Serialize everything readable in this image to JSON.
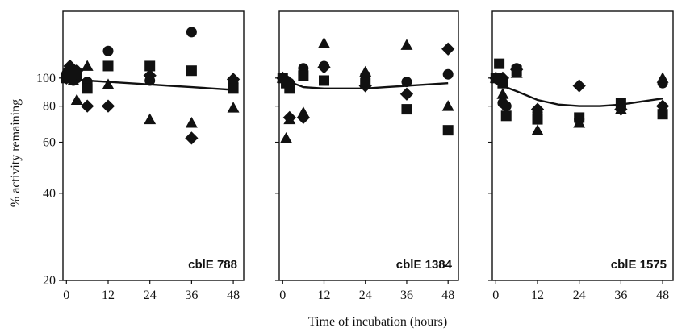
{
  "chart_data": {
    "type": "scatter",
    "xlabel": "Time of incubation (hours)",
    "ylabel": "% activity remaining",
    "y_scale": "log",
    "ylim": [
      20,
      170
    ],
    "xlim": [
      -1,
      51
    ],
    "x_ticks": [
      0,
      12,
      24,
      36,
      48
    ],
    "y_ticks": [
      {
        "value": 20,
        "label": "20"
      },
      {
        "value": 40,
        "label": "40"
      },
      {
        "value": 60,
        "label": "60"
      },
      {
        "value": 80,
        "label": "80"
      },
      {
        "value": 100,
        "label": "100"
      }
    ],
    "panels": [
      {
        "label": "cblE 788",
        "x_tick_labels": [
          "0",
          "12",
          "24",
          "36",
          "48"
        ],
        "fit_line": {
          "x": [
            0,
            6,
            12,
            18,
            24,
            30,
            36,
            42,
            48
          ],
          "y": [
            100,
            98,
            97,
            96,
            95,
            94,
            93,
            92,
            91
          ]
        },
        "series": [
          {
            "marker": "circle",
            "x": [
              0,
              1,
              2,
              3,
              6,
              12,
              24,
              36,
              48
            ],
            "y": [
              100,
              103,
              98,
              100,
              97,
              124,
              98,
              144,
              96
            ]
          },
          {
            "marker": "square",
            "x": [
              0,
              1,
              2,
              3,
              6,
              12,
              24,
              36,
              48
            ],
            "y": [
              100,
              101,
              100,
              102,
              92,
              110,
              110,
              106,
              92
            ]
          },
          {
            "marker": "triangle",
            "x": [
              0,
              2,
              3,
              6,
              12,
              24,
              36,
              48
            ],
            "y": [
              107,
              98,
              84,
              110,
              95,
              72,
              70,
              79
            ]
          },
          {
            "marker": "diamond",
            "x": [
              0,
              1,
              2,
              3,
              6,
              12,
              24,
              36,
              48
            ],
            "y": [
              100,
              110,
              102,
              106,
              80,
              80,
              102,
              62,
              99
            ]
          }
        ]
      },
      {
        "label": "cblE 1384",
        "x_tick_labels": [
          "0",
          "12",
          "24",
          "36",
          "48"
        ],
        "fit_line": {
          "x": [
            0,
            3,
            6,
            12,
            18,
            24,
            30,
            36,
            42,
            48
          ],
          "y": [
            100,
            96,
            93,
            92,
            92,
            92,
            93,
            94,
            95,
            96
          ]
        },
        "series": [
          {
            "marker": "circle",
            "x": [
              0,
              1,
              2,
              6,
              12,
              24,
              36,
              48
            ],
            "y": [
              100,
              98,
              96,
              108,
              110,
              102,
              97,
              103
            ]
          },
          {
            "marker": "square",
            "x": [
              0,
              1,
              2,
              6,
              12,
              24,
              36,
              48
            ],
            "y": [
              100,
              96,
              92,
              102,
              98,
              96,
              78,
              66
            ]
          },
          {
            "marker": "triangle",
            "x": [
              0,
              1,
              2,
              6,
              12,
              24,
              36,
              48
            ],
            "y": [
              100,
              62,
              72,
              76,
              132,
              105,
              130,
              80
            ]
          },
          {
            "marker": "diamond",
            "x": [
              0,
              1,
              2,
              6,
              12,
              24,
              36,
              48
            ],
            "y": [
              100,
              98,
              73,
              73,
              109,
              94,
              88,
              126
            ]
          }
        ]
      },
      {
        "label": "cblE 1575",
        "x_tick_labels": [
          "0",
          "12",
          "24",
          "36",
          "48"
        ],
        "fit_line": {
          "x": [
            0,
            6,
            12,
            18,
            24,
            30,
            36,
            42,
            48
          ],
          "y": [
            96,
            90,
            84,
            81,
            80,
            80,
            81,
            83,
            85
          ]
        },
        "series": [
          {
            "marker": "circle",
            "x": [
              0,
              1,
              2,
              3,
              6,
              12,
              24,
              36,
              48
            ],
            "y": [
              100,
              100,
              82,
              80,
              108,
              76,
              72,
              80,
              96
            ]
          },
          {
            "marker": "square",
            "x": [
              0,
              1,
              2,
              3,
              6,
              12,
              24,
              36,
              48
            ],
            "y": [
              100,
              112,
              96,
              74,
              106,
              72,
              73,
              82,
              75
            ]
          },
          {
            "marker": "triangle",
            "x": [
              0,
              2,
              6,
              12,
              24,
              36,
              48
            ],
            "y": [
              100,
              88,
              104,
              66,
              70,
              78,
              100
            ]
          },
          {
            "marker": "diamond",
            "x": [
              0,
              2,
              6,
              12,
              24,
              36,
              48
            ],
            "y": [
              100,
              100,
              107,
              78,
              94,
              78,
              80
            ]
          }
        ]
      }
    ]
  }
}
